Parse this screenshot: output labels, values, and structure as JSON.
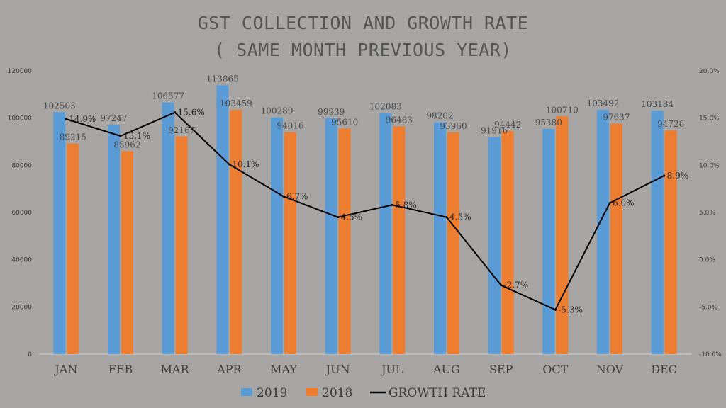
{
  "colors": {
    "bg": "#a7a6a5",
    "series2019": "#5b9bd5",
    "series2018": "#ed7d31",
    "line": "#000000",
    "axis": "#d0d0d0"
  },
  "chart_data": {
    "type": "bar",
    "title_line1": "GST COLLECTION AND GROWTH RATE",
    "title_line2": "( SAME MONTH PREVIOUS YEAR)",
    "categories": [
      "JAN",
      "FEB",
      "MAR",
      "APR",
      "MAY",
      "JUN",
      "JUL",
      "AUG",
      "SEP",
      "OCT",
      "NOV",
      "DEC"
    ],
    "series": [
      {
        "name": "2019",
        "values": [
          102503,
          97247,
          106577,
          113865,
          100289,
          99939,
          102083,
          98202,
          91916,
          95380,
          103492,
          103184
        ]
      },
      {
        "name": "2018",
        "values": [
          89215,
          85962,
          92167,
          103459,
          94016,
          95610,
          96483,
          93960,
          94442,
          100710,
          97637,
          94726
        ]
      }
    ],
    "growth_rate": {
      "name": "GROWTH RATE",
      "type": "line",
      "axis": "secondary",
      "values": [
        14.9,
        13.1,
        15.6,
        10.1,
        6.7,
        4.5,
        5.8,
        4.5,
        -2.7,
        -5.3,
        6.0,
        8.9
      ],
      "labels": [
        "14.9%",
        "13.1%",
        "15.6%",
        "10.1%",
        "6.7%",
        "4.5%",
        "5.8%",
        "4.5%",
        "-2.7%",
        "-5.3%",
        "6.0%",
        "8.9%"
      ]
    },
    "y_left": {
      "ylim": [
        0,
        120000
      ],
      "ticks": [
        0,
        20000,
        40000,
        60000,
        80000,
        100000,
        120000
      ],
      "tick_labels": [
        "0",
        "20000",
        "40000",
        "60000",
        "80000",
        "100000",
        "120000"
      ]
    },
    "y_right": {
      "ylim": [
        -10,
        20
      ],
      "ticks": [
        -10,
        -5,
        0,
        5,
        10,
        15,
        20
      ],
      "tick_labels": [
        "-10.0%",
        "-5.0%",
        "0.0%",
        "5.0%",
        "10.0%",
        "15.0%",
        "20.0%"
      ]
    },
    "legend": {
      "position": "bottom",
      "items": [
        "2019",
        "2018",
        "GROWTH RATE"
      ]
    }
  }
}
